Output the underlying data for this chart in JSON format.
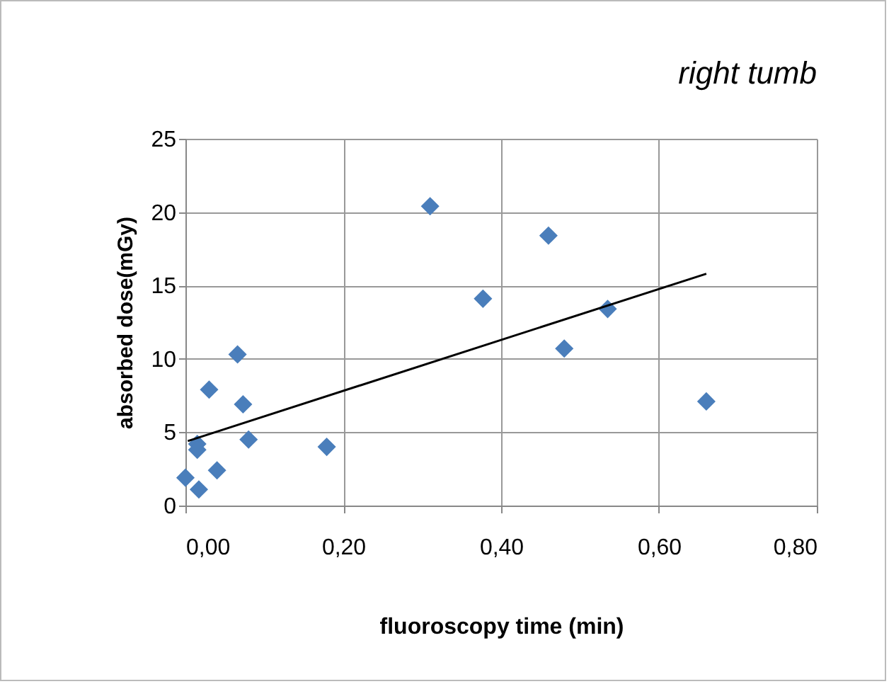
{
  "chart_data": {
    "type": "scatter",
    "title": "right tumb",
    "xlabel": "fluoroscopy time (min)",
    "ylabel": "absorbed dose(mGy)",
    "xlim": [
      0,
      0.8
    ],
    "xticks": [
      {
        "value": 0,
        "label": "0,00"
      },
      {
        "value": 0.2,
        "label": "0,20"
      },
      {
        "value": 0.4,
        "label": "0,40"
      },
      {
        "value": 0.6,
        "label": "0,60"
      },
      {
        "value": 0.8,
        "label": "0,80"
      }
    ],
    "ylim": [
      0,
      25
    ],
    "yticks": [
      0,
      5,
      10,
      15,
      20,
      25
    ],
    "grid": true,
    "marker": "diamond",
    "series": [
      {
        "color": "#4a7ebb",
        "x": [
          0.0,
          0.017,
          0.04,
          0.015,
          0.015,
          0.03,
          0.066,
          0.073,
          0.08,
          0.179,
          0.31,
          0.377,
          0.46,
          0.48,
          0.535,
          0.66
        ],
        "values": [
          1.9,
          1.1,
          2.4,
          4.2,
          3.8,
          7.9,
          10.3,
          6.9,
          4.5,
          4.0,
          20.4,
          14.1,
          18.4,
          10.7,
          13.4,
          7.1
        ]
      },
      {
        "type": "line",
        "color": "#000000",
        "x": [
          0.003,
          0.66
        ],
        "values": [
          4.4,
          15.8
        ],
        "marker": "none"
      }
    ]
  }
}
